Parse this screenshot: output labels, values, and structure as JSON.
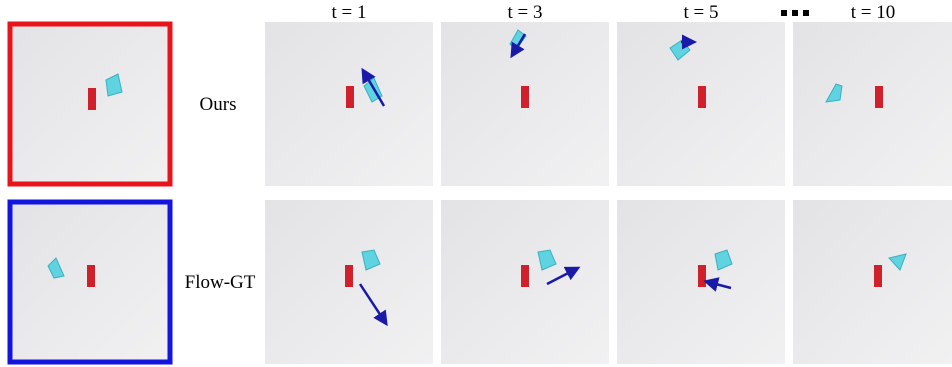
{
  "column_headers": [
    "t = 1",
    "t = 3",
    "t = 5",
    "t = 10"
  ],
  "rows": [
    {
      "label": "Ours"
    },
    {
      "label": "Flow-GT"
    }
  ]
}
